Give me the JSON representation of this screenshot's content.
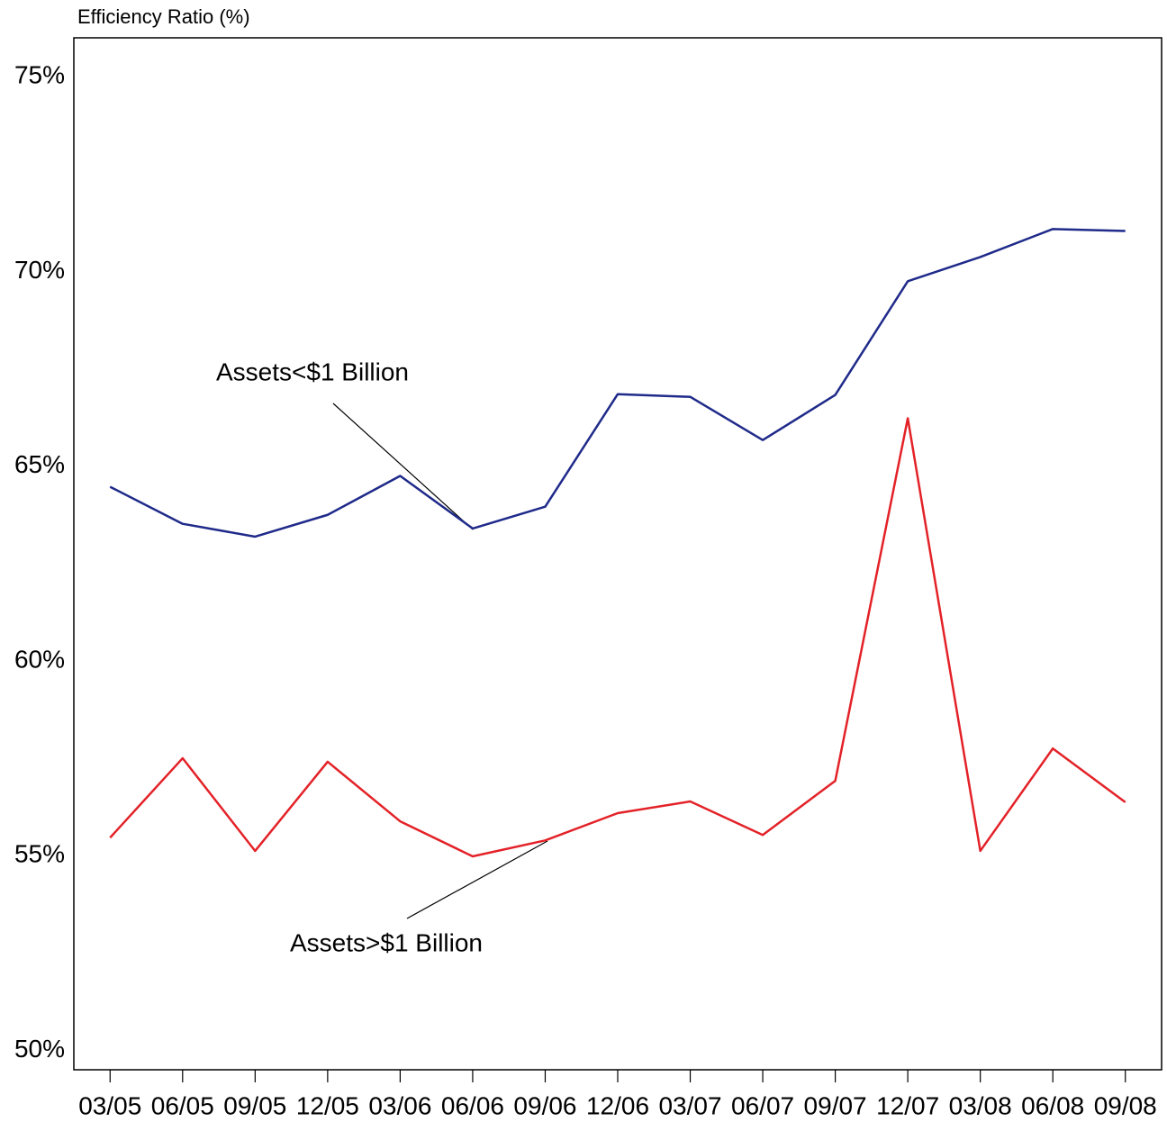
{
  "chart_data": {
    "type": "line",
    "ylabel": "Efficiency Ratio (%)",
    "categories": [
      "03/05",
      "06/05",
      "09/05",
      "12/05",
      "03/06",
      "06/06",
      "09/06",
      "12/06",
      "03/07",
      "06/07",
      "09/07",
      "12/07",
      "03/08",
      "06/08",
      "09/08"
    ],
    "series": [
      {
        "name": "Assets<$1 Billion",
        "color": "#1f2a8a",
        "values": [
          64.47,
          63.52,
          63.19,
          63.75,
          64.75,
          63.4,
          63.96,
          66.85,
          66.78,
          65.67,
          66.83,
          69.75,
          70.37,
          71.09,
          71.04
        ]
      },
      {
        "name": "Assets>$1 Billion",
        "color": "#e32228",
        "values": [
          55.46,
          57.5,
          55.12,
          57.41,
          55.88,
          54.98,
          55.39,
          56.09,
          56.39,
          55.53,
          56.92,
          66.23,
          55.12,
          57.75,
          56.37
        ]
      }
    ],
    "ylim": [
      49.5,
      76
    ],
    "yticks": [
      {
        "value": 50,
        "label": "50%"
      },
      {
        "value": 55,
        "label": "55%"
      },
      {
        "value": 60,
        "label": "60%"
      },
      {
        "value": 65,
        "label": "65%"
      },
      {
        "value": 70,
        "label": "70%"
      },
      {
        "value": 75,
        "label": "75%"
      }
    ],
    "grid": false
  }
}
